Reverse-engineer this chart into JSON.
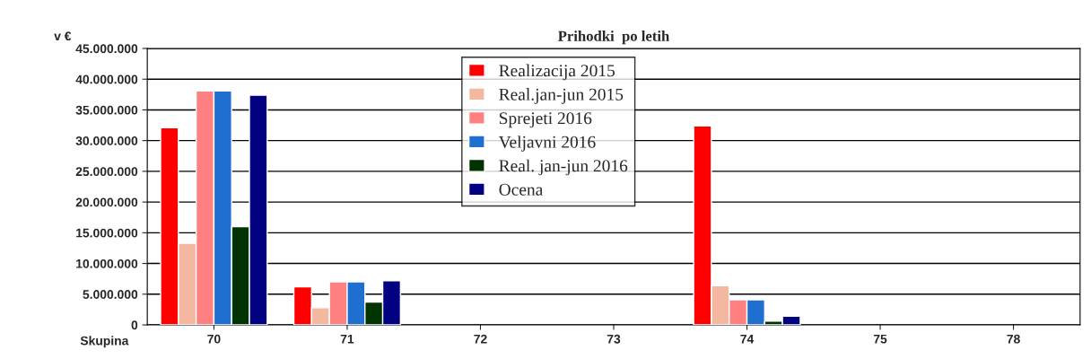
{
  "chart_data": {
    "type": "bar",
    "title": "Prihodki  po letih",
    "ylabel": "v €",
    "xlabel": "Skupina",
    "categories": [
      "70",
      "71",
      "72",
      "73",
      "74",
      "75",
      "78"
    ],
    "series": [
      {
        "name": "Realizacija 2015",
        "color": "#ff0000",
        "values": [
          32100000,
          6200000,
          null,
          null,
          32400000,
          null,
          null
        ]
      },
      {
        "name": "Real.jan-jun 2015",
        "color": "#f4b8a0",
        "values": [
          13300000,
          2800000,
          null,
          null,
          6400000,
          null,
          null
        ]
      },
      {
        "name": "Sprejeti 2016",
        "color": "#ff8080",
        "values": [
          38100000,
          7000000,
          null,
          null,
          4100000,
          null,
          null
        ]
      },
      {
        "name": "Veljavni 2016",
        "color": "#1f6fd0",
        "values": [
          38100000,
          7000000,
          null,
          null,
          4100000,
          null,
          null
        ]
      },
      {
        "name": "Real. jan-jun 2016",
        "color": "#003300",
        "values": [
          16000000,
          3700000,
          null,
          null,
          600000,
          null,
          null
        ]
      },
      {
        "name": "Ocena",
        "color": "#000080",
        "values": [
          37400000,
          7200000,
          null,
          null,
          1400000,
          null,
          null
        ]
      }
    ],
    "ylim": [
      0,
      45000000
    ],
    "yticks": [
      0,
      {
        "value": 5000000,
        "label": "5.000.000"
      },
      {
        "value": 10000000,
        "label": "10.000.000"
      },
      {
        "value": 15000000,
        "label": "15.000.000"
      },
      {
        "value": 20000000,
        "label": "20.000.000"
      },
      {
        "value": 25000000,
        "label": "25.000.000"
      },
      {
        "value": 30000000,
        "label": "30.000.000"
      },
      {
        "value": 35000000,
        "label": "35.000.000"
      },
      {
        "value": 40000000,
        "label": "40.000.000"
      },
      {
        "value": 45000000,
        "label": "45.000.000"
      }
    ],
    "grid": "y",
    "legend": "top"
  }
}
